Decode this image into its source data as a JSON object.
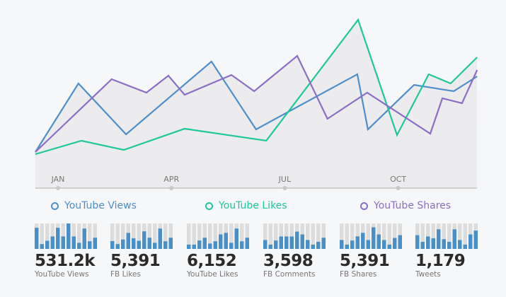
{
  "chart_data": {
    "type": "line",
    "xlabel": "",
    "ylabel": "",
    "x_ticks": [
      {
        "label": "JAN",
        "month": 0
      },
      {
        "label": "APR",
        "month": 3
      },
      {
        "label": "JUL",
        "month": 6
      },
      {
        "label": "OCT",
        "month": 9
      }
    ],
    "xlim": [
      -0.6,
      11.09
    ],
    "ylim": [
      0,
      120
    ],
    "grid": false,
    "legend_placement": "bottom",
    "series": [
      {
        "name": "YouTube Views",
        "color": "#4f8fc9",
        "x": [
          -0.6,
          0.54,
          1.8,
          4.06,
          5.24,
          7.92,
          8.2,
          9.42,
          10.47,
          11.09
        ],
        "y": [
          22.5,
          71,
          35,
          86.5,
          38.5,
          77.5,
          38.5,
          70,
          65.5,
          76
        ]
      },
      {
        "name": "YouTube Likes",
        "color": "#1fc79a",
        "x": [
          -0.6,
          0.62,
          1.74,
          3.35,
          5.51,
          7.94,
          8.97,
          9.81,
          10.39,
          11.09
        ],
        "y": [
          21,
          30.5,
          24,
          39,
          30.5,
          116,
          34.5,
          77.5,
          71,
          89.5
        ]
      },
      {
        "name": "YouTube Shares",
        "color": "#8a6fc4",
        "x": [
          -0.6,
          1.42,
          2.34,
          2.92,
          3.35,
          4.59,
          5.19,
          6.33,
          7.13,
          8.18,
          9.85,
          10.17,
          10.69,
          11.09
        ],
        "y": [
          22.5,
          74,
          64.5,
          76.5,
          63,
          77,
          65.5,
          90.5,
          46,
          64.5,
          35.5,
          60.5,
          57,
          80.5
        ]
      }
    ]
  },
  "stats": [
    {
      "value": "531.2k",
      "label": "YouTube Views",
      "bars": [
        0.83,
        0.19,
        0.32,
        0.49,
        0.83,
        0.49,
        1.0,
        0.49,
        0.24,
        0.8,
        0.3,
        0.44
      ]
    },
    {
      "value": "5,391",
      "label": "FB Likes",
      "bars": [
        0.31,
        0.19,
        0.37,
        0.63,
        0.42,
        0.32,
        0.69,
        0.44,
        0.24,
        0.8,
        0.3,
        0.44
      ]
    },
    {
      "value": "6,152",
      "label": "YouTube Likes",
      "bars": [
        0.17,
        0.17,
        0.33,
        0.44,
        0.21,
        0.3,
        0.57,
        0.63,
        0.24,
        0.8,
        0.3,
        0.44
      ]
    },
    {
      "value": "3,598",
      "label": "FB Comments",
      "bars": [
        0.35,
        0.17,
        0.33,
        0.49,
        0.49,
        0.49,
        0.68,
        0.57,
        0.35,
        0.17,
        0.28,
        0.44
      ]
    },
    {
      "value": "5,391",
      "label": "FB Shares",
      "bars": [
        0.35,
        0.17,
        0.33,
        0.49,
        0.63,
        0.35,
        0.85,
        0.57,
        0.35,
        0.17,
        0.43,
        0.54
      ]
    },
    {
      "value": "1,179",
      "label": "Tweets",
      "bars": [
        0.54,
        0.28,
        0.49,
        0.42,
        0.77,
        0.38,
        0.28,
        0.77,
        0.35,
        0.17,
        0.57,
        0.72
      ]
    }
  ],
  "colors": {
    "bar": "#4a8fc8",
    "bar_track": "#dcdcdc",
    "axis": "#cfcfcf",
    "tick_label": "#777777"
  }
}
